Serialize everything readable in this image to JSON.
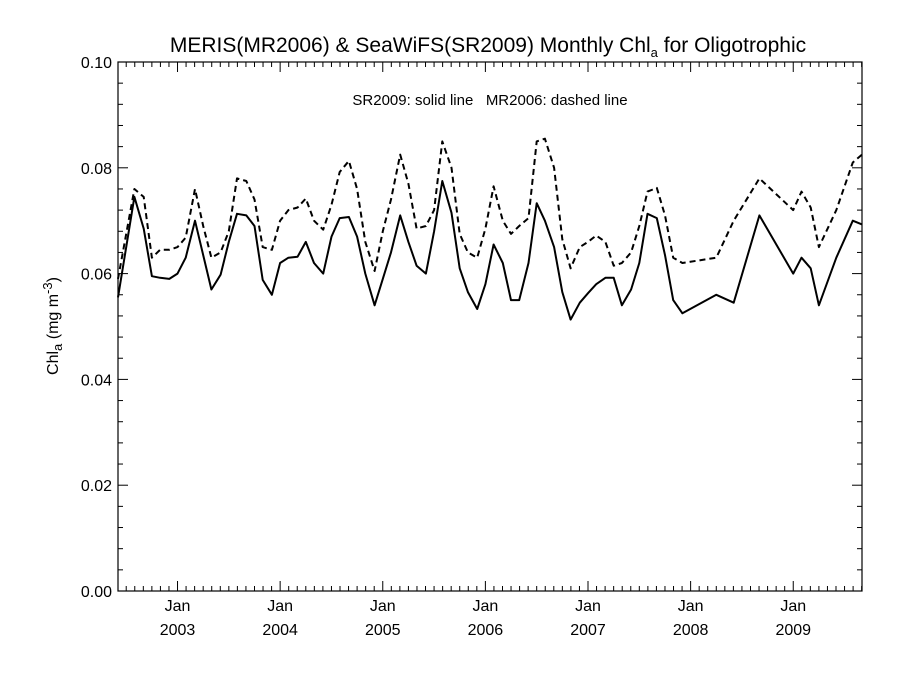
{
  "chart_data": {
    "type": "line",
    "title_main": "MERIS(MR2006) & SeaWiFS(SR2009) Monthly Chl",
    "title_sub": "a",
    "title_tail": " for Oligotrophic",
    "ylabel_main": "Chl",
    "ylabel_sub": "a",
    "ylabel_unit": " (mg m",
    "ylabel_sup": "-3",
    "ylabel_close": ")",
    "annotation": "SR2009: solid line   MR2006: dashed line",
    "xlim": [
      2002.42,
      2009.67
    ],
    "ylim": [
      0.0,
      0.1
    ],
    "yticks": [
      "0.00",
      "0.02",
      "0.04",
      "0.06",
      "0.08",
      "0.10"
    ],
    "xticks": [
      {
        "month": "Jan",
        "year": "2003"
      },
      {
        "month": "Jan",
        "year": "2004"
      },
      {
        "month": "Jan",
        "year": "2005"
      },
      {
        "month": "Jan",
        "year": "2006"
      },
      {
        "month": "Jan",
        "year": "2007"
      },
      {
        "month": "Jan",
        "year": "2008"
      },
      {
        "month": "Jan",
        "year": "2009"
      }
    ],
    "series": [
      {
        "name": "SR2009",
        "style": "solid",
        "color": "#000000",
        "x": [
          2002.42,
          2002.58,
          2002.67,
          2002.75,
          2002.83,
          2002.92,
          2003.0,
          2003.08,
          2003.17,
          2003.25,
          2003.33,
          2003.42,
          2003.5,
          2003.58,
          2003.67,
          2003.75,
          2003.83,
          2003.92,
          2004.0,
          2004.08,
          2004.17,
          2004.25,
          2004.33,
          2004.42,
          2004.5,
          2004.58,
          2004.67,
          2004.75,
          2004.83,
          2004.92,
          2005.0,
          2005.08,
          2005.17,
          2005.25,
          2005.33,
          2005.42,
          2005.5,
          2005.58,
          2005.67,
          2005.75,
          2005.83,
          2005.92,
          2006.0,
          2006.08,
          2006.17,
          2006.25,
          2006.33,
          2006.42,
          2006.5,
          2006.58,
          2006.67,
          2006.75,
          2006.83,
          2006.92,
          2007.0,
          2007.08,
          2007.17,
          2007.25,
          2007.33,
          2007.42,
          2007.5,
          2007.58,
          2007.67,
          2007.75,
          2007.83,
          2007.92,
          2008.25,
          2008.42,
          2008.67,
          2009.0,
          2009.08,
          2009.17,
          2009.25,
          2009.42,
          2009.58,
          2009.67
        ],
        "y": [
          0.0555,
          0.0745,
          0.0685,
          0.0595,
          0.0592,
          0.059,
          0.06,
          0.063,
          0.07,
          0.0635,
          0.057,
          0.0598,
          0.066,
          0.0713,
          0.071,
          0.069,
          0.0588,
          0.056,
          0.062,
          0.063,
          0.0632,
          0.066,
          0.062,
          0.06,
          0.067,
          0.0705,
          0.0707,
          0.067,
          0.06,
          0.054,
          0.059,
          0.064,
          0.071,
          0.066,
          0.0615,
          0.06,
          0.068,
          0.0775,
          0.0715,
          0.061,
          0.0565,
          0.0533,
          0.058,
          0.0655,
          0.062,
          0.055,
          0.055,
          0.062,
          0.0733,
          0.07,
          0.065,
          0.0565,
          0.0513,
          0.0545,
          0.0563,
          0.058,
          0.0592,
          0.0592,
          0.054,
          0.057,
          0.062,
          0.0713,
          0.0705,
          0.0635,
          0.055,
          0.0525,
          0.056,
          0.0545,
          0.071,
          0.06,
          0.063,
          0.061,
          0.054,
          0.063,
          0.07,
          0.0693
        ]
      },
      {
        "name": "MR2006",
        "style": "dashed",
        "color": "#000000",
        "x": [
          2002.42,
          2002.58,
          2002.67,
          2002.75,
          2002.83,
          2002.92,
          2003.0,
          2003.08,
          2003.17,
          2003.25,
          2003.33,
          2003.42,
          2003.5,
          2003.58,
          2003.67,
          2003.75,
          2003.83,
          2003.92,
          2004.0,
          2004.08,
          2004.17,
          2004.25,
          2004.33,
          2004.42,
          2004.5,
          2004.58,
          2004.67,
          2004.75,
          2004.83,
          2004.92,
          2005.0,
          2005.08,
          2005.17,
          2005.25,
          2005.33,
          2005.42,
          2005.5,
          2005.58,
          2005.67,
          2005.75,
          2005.83,
          2005.92,
          2006.0,
          2006.08,
          2006.17,
          2006.25,
          2006.33,
          2006.42,
          2006.5,
          2006.58,
          2006.67,
          2006.75,
          2006.83,
          2006.92,
          2007.0,
          2007.08,
          2007.17,
          2007.25,
          2007.33,
          2007.42,
          2007.5,
          2007.58,
          2007.67,
          2007.75,
          2007.83,
          2007.92,
          2008.25,
          2008.42,
          2008.67,
          2009.0,
          2009.08,
          2009.17,
          2009.25,
          2009.42,
          2009.58,
          2009.67
        ],
        "y": [
          0.059,
          0.076,
          0.0745,
          0.063,
          0.0645,
          0.0645,
          0.065,
          0.0668,
          0.076,
          0.069,
          0.063,
          0.064,
          0.068,
          0.078,
          0.0775,
          0.074,
          0.065,
          0.0645,
          0.07,
          0.072,
          0.0725,
          0.0742,
          0.07,
          0.0683,
          0.073,
          0.0792,
          0.0813,
          0.076,
          0.066,
          0.0605,
          0.068,
          0.074,
          0.0825,
          0.077,
          0.0685,
          0.069,
          0.072,
          0.085,
          0.08,
          0.0675,
          0.064,
          0.063,
          0.0685,
          0.0765,
          0.07,
          0.0675,
          0.069,
          0.0705,
          0.085,
          0.0855,
          0.08,
          0.0665,
          0.061,
          0.065,
          0.066,
          0.0672,
          0.066,
          0.0615,
          0.062,
          0.064,
          0.069,
          0.0755,
          0.0762,
          0.071,
          0.063,
          0.062,
          0.063,
          0.07,
          0.078,
          0.072,
          0.0755,
          0.0725,
          0.065,
          0.072,
          0.081,
          0.0825
        ]
      }
    ]
  }
}
